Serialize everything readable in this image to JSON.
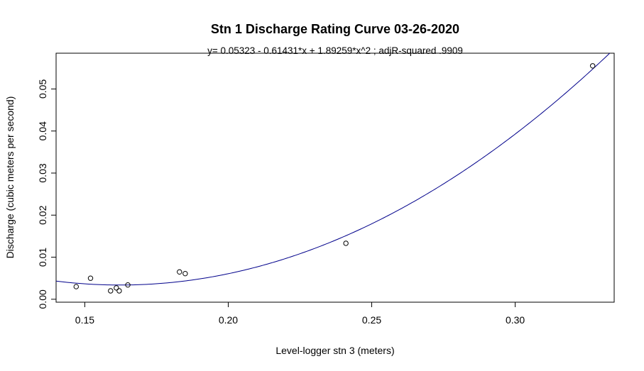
{
  "chart_data": {
    "type": "scatter",
    "title": "Stn 1 Discharge Rating Curve 03-26-2020",
    "subtitle": "y=  0.05323  - 0.61431*x + 1.89259*x^2 ; adjR-squared .9909",
    "xlabel": "Level-logger stn 3 (meters)",
    "ylabel": "Discharge (cubic meters per second)",
    "xlim": [
      0.14,
      0.3345
    ],
    "ylim": [
      -0.0007,
      0.0585
    ],
    "x_ticks": [
      0.15,
      0.2,
      0.25,
      0.3
    ],
    "x_tick_labels": [
      "0.15",
      "0.20",
      "0.25",
      "0.30"
    ],
    "y_ticks": [
      0.0,
      0.01,
      0.02,
      0.03,
      0.04,
      0.05
    ],
    "y_tick_labels": [
      "0.00",
      "0.01",
      "0.02",
      "0.03",
      "0.04",
      "0.05"
    ],
    "grid": false,
    "points": [
      {
        "x": 0.147,
        "y": 0.003
      },
      {
        "x": 0.152,
        "y": 0.005
      },
      {
        "x": 0.159,
        "y": 0.002
      },
      {
        "x": 0.161,
        "y": 0.0027
      },
      {
        "x": 0.162,
        "y": 0.002
      },
      {
        "x": 0.165,
        "y": 0.0034
      },
      {
        "x": 0.183,
        "y": 0.0065
      },
      {
        "x": 0.185,
        "y": 0.0061
      },
      {
        "x": 0.241,
        "y": 0.0133
      },
      {
        "x": 0.327,
        "y": 0.0555
      }
    ],
    "fit": {
      "coefficients": [
        0.05323,
        -0.61431,
        1.89259
      ],
      "color": "#00008B"
    },
    "point_color": "#000000"
  }
}
